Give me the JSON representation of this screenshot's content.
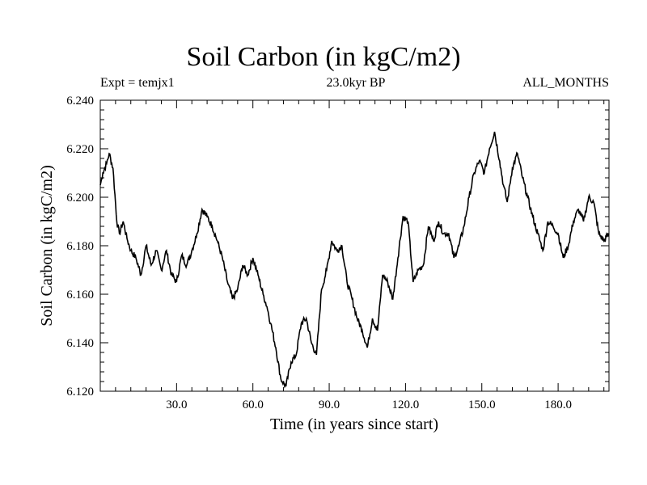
{
  "chart_data": {
    "type": "line",
    "title": "Soil Carbon (in kgC/m2)",
    "experiment_label": "Expt = temjx1",
    "period_label": "23.0kyr BP",
    "months_label": "ALL_MONTHS",
    "xlabel": "Time (in years since start)",
    "ylabel": "Soil Carbon (in kgC/m2)",
    "xlim": [
      0,
      200
    ],
    "ylim": [
      6.12,
      6.24
    ],
    "x_ticks": [
      30,
      60,
      90,
      120,
      150,
      180
    ],
    "x_tick_labels": [
      "30.0",
      "60.0",
      "90.0",
      "120.0",
      "150.0",
      "180.0"
    ],
    "y_ticks": [
      6.12,
      6.14,
      6.16,
      6.18,
      6.2,
      6.22,
      6.24
    ],
    "y_tick_labels": [
      "6.120",
      "6.140",
      "6.160",
      "6.180",
      "6.200",
      "6.220",
      "6.240"
    ],
    "series": [
      {
        "name": "Soil Carbon",
        "color": "#000000",
        "x": [
          0,
          1,
          2.5,
          3.5,
          5,
          6.5,
          7.5,
          9,
          10.5,
          12,
          14,
          16,
          18,
          20,
          22,
          24,
          26,
          28,
          30,
          32,
          34,
          36,
          38,
          40,
          42,
          44,
          46,
          48,
          50,
          52,
          54,
          56,
          58,
          60,
          62,
          64,
          65.5,
          67,
          69,
          71,
          73,
          75,
          77,
          79,
          81,
          83,
          85,
          87,
          89,
          91,
          93,
          95,
          97,
          99,
          101,
          103,
          105,
          107,
          109,
          111,
          113,
          115,
          117,
          119,
          121,
          123,
          125,
          127,
          129,
          131,
          133,
          135,
          137,
          139,
          141,
          143,
          145,
          147,
          149,
          151,
          153,
          155,
          157,
          158.5,
          160,
          162,
          164,
          166,
          168,
          170,
          172,
          174,
          176,
          178,
          180,
          182,
          184,
          186,
          188,
          190,
          192,
          194,
          196,
          198,
          200
        ],
        "y": [
          6.205,
          6.21,
          6.214,
          6.218,
          6.212,
          6.19,
          6.185,
          6.19,
          6.183,
          6.178,
          6.175,
          6.168,
          6.18,
          6.172,
          6.178,
          6.17,
          6.178,
          6.168,
          6.165,
          6.176,
          6.172,
          6.178,
          6.185,
          6.195,
          6.192,
          6.188,
          6.182,
          6.175,
          6.165,
          6.158,
          6.162,
          6.172,
          6.168,
          6.175,
          6.168,
          6.16,
          6.155,
          6.148,
          6.138,
          6.125,
          6.122,
          6.132,
          6.135,
          6.148,
          6.15,
          6.14,
          6.135,
          6.162,
          6.17,
          6.182,
          6.178,
          6.18,
          6.165,
          6.158,
          6.15,
          6.145,
          6.138,
          6.15,
          6.145,
          6.168,
          6.165,
          6.158,
          6.175,
          6.192,
          6.19,
          6.165,
          6.17,
          6.172,
          6.188,
          6.182,
          6.19,
          6.185,
          6.185,
          6.175,
          6.18,
          6.188,
          6.2,
          6.21,
          6.215,
          6.21,
          6.22,
          6.227,
          6.215,
          6.205,
          6.198,
          6.212,
          6.218,
          6.208,
          6.2,
          6.192,
          6.185,
          6.178,
          6.19,
          6.188,
          6.185,
          6.175,
          6.18,
          6.19,
          6.195,
          6.19,
          6.2,
          6.198,
          6.185,
          6.182,
          6.185
        ]
      }
    ]
  }
}
